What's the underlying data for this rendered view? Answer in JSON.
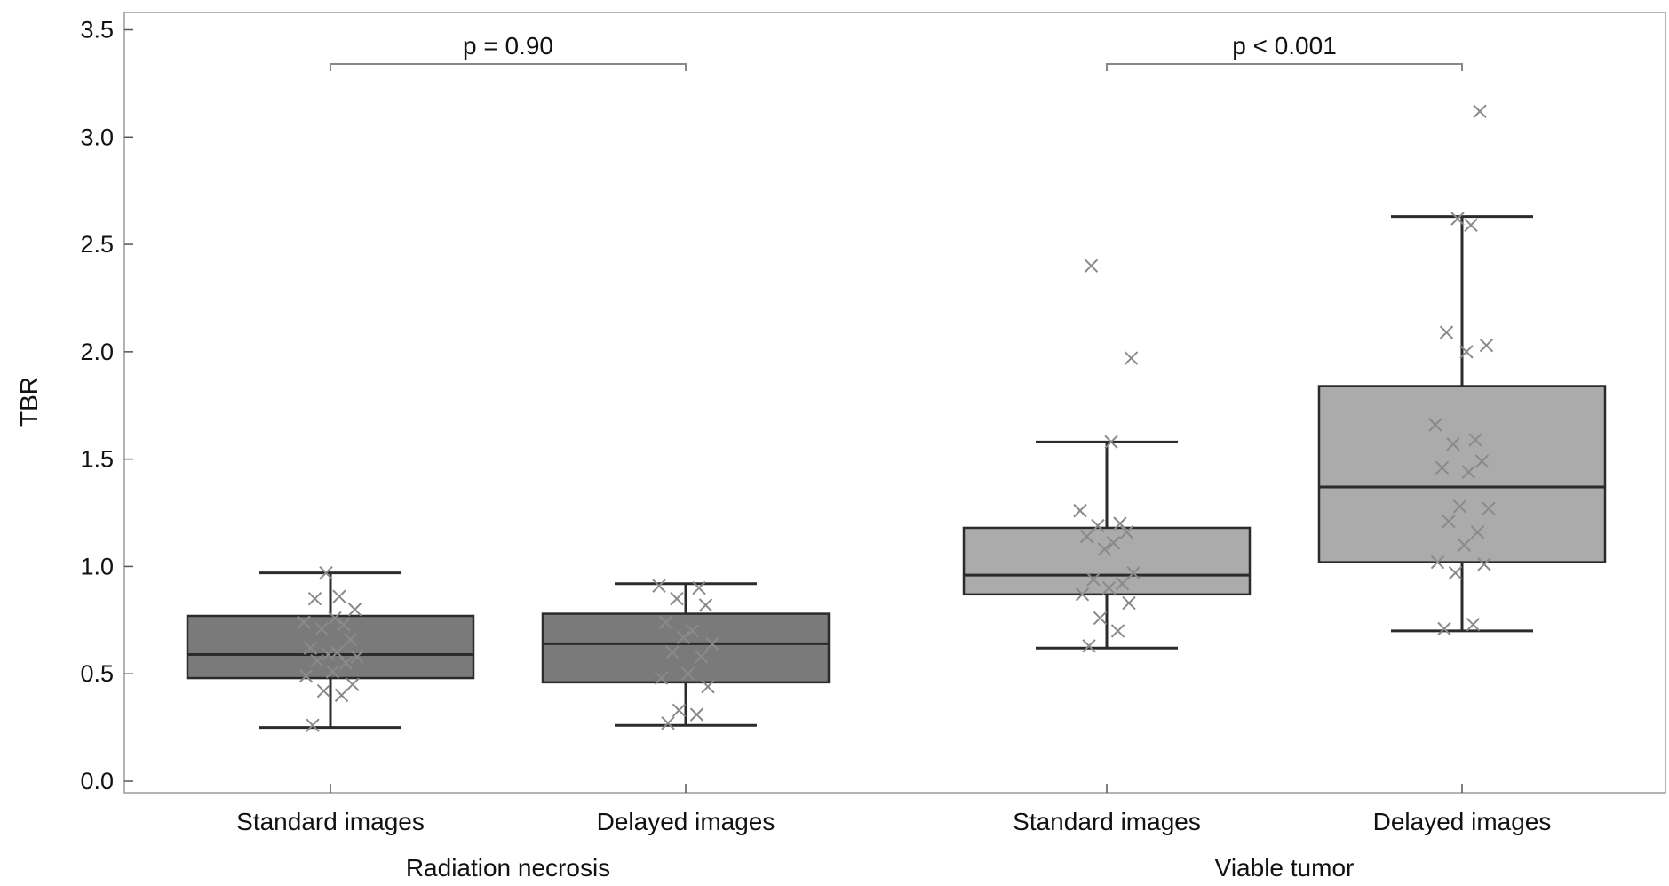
{
  "chart_data": {
    "type": "box",
    "ylabel": "TBR",
    "ylim": [
      0,
      3.55
    ],
    "yticks": [
      "0.0",
      "0.5",
      "1.0",
      "1.5",
      "2.0",
      "2.5",
      "3.0",
      "3.5"
    ],
    "groups": [
      {
        "name": "Radiation necrosis",
        "categories": [
          "Standard images",
          "Delayed images"
        ]
      },
      {
        "name": "Viable tumor",
        "categories": [
          "Standard images",
          "Delayed images"
        ]
      }
    ],
    "boxes": [
      {
        "group": "Radiation necrosis",
        "category": "Standard images",
        "color": "#7a7a7a",
        "whisker_low": 0.25,
        "q1": 0.48,
        "median": 0.59,
        "q3": 0.77,
        "whisker_high": 0.97,
        "points": [
          0.26,
          0.4,
          0.42,
          0.45,
          0.49,
          0.51,
          0.55,
          0.56,
          0.58,
          0.59,
          0.6,
          0.62,
          0.66,
          0.71,
          0.73,
          0.74,
          0.76,
          0.8,
          0.85,
          0.86,
          0.97
        ]
      },
      {
        "group": "Radiation necrosis",
        "category": "Delayed images",
        "color": "#7a7a7a",
        "whisker_low": 0.26,
        "q1": 0.46,
        "median": 0.64,
        "q3": 0.78,
        "whisker_high": 0.92,
        "points": [
          0.27,
          0.31,
          0.33,
          0.44,
          0.48,
          0.5,
          0.58,
          0.6,
          0.64,
          0.67,
          0.7,
          0.74,
          0.82,
          0.85,
          0.9,
          0.91
        ]
      },
      {
        "group": "Viable tumor",
        "category": "Standard images",
        "color": "#ababab",
        "whisker_low": 0.62,
        "q1": 0.87,
        "median": 0.96,
        "q3": 1.18,
        "whisker_high": 1.58,
        "points": [
          0.63,
          0.7,
          0.76,
          0.83,
          0.87,
          0.9,
          0.92,
          0.94,
          0.97,
          1.08,
          1.11,
          1.14,
          1.16,
          1.19,
          1.2,
          1.26,
          1.58,
          1.97,
          2.4
        ]
      },
      {
        "group": "Viable tumor",
        "category": "Delayed images",
        "color": "#ababab",
        "whisker_low": 0.7,
        "q1": 1.02,
        "median": 1.37,
        "q3": 1.84,
        "whisker_high": 2.63,
        "points": [
          0.71,
          0.73,
          0.97,
          1.01,
          1.02,
          1.1,
          1.16,
          1.21,
          1.27,
          1.28,
          1.44,
          1.46,
          1.49,
          1.57,
          1.59,
          1.66,
          2.0,
          2.03,
          2.09,
          2.59,
          2.62,
          3.12
        ]
      }
    ],
    "comparisons": [
      {
        "group": "Radiation necrosis",
        "label": "p = 0.90"
      },
      {
        "group": "Viable tumor",
        "label": "p < 0.001"
      }
    ]
  }
}
